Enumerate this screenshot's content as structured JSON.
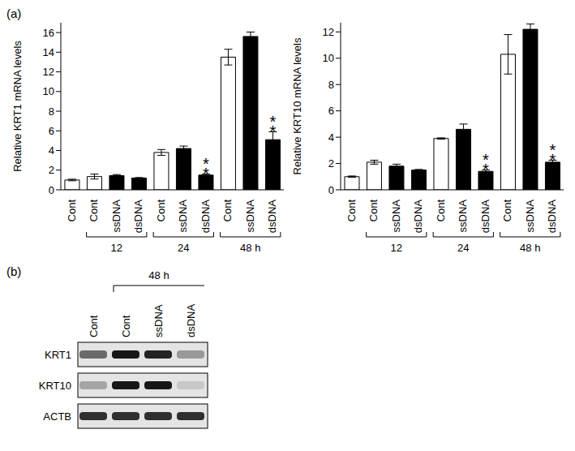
{
  "chart_data": [
    {
      "type": "bar",
      "y_label": "Relative KRT1 mRNA levels",
      "categories": [
        "Cont",
        "Cont",
        "ssDNA",
        "dsDNA",
        "Cont",
        "ssDNA",
        "dsDNA",
        "Cont",
        "ssDNA",
        "dsDNA"
      ],
      "values": [
        1.0,
        1.35,
        1.45,
        1.2,
        3.8,
        4.2,
        1.5,
        13.5,
        15.6,
        5.1
      ],
      "errors": [
        0.08,
        0.25,
        0.1,
        0.05,
        0.3,
        0.25,
        0.1,
        0.8,
        0.45,
        0.8
      ],
      "colors": [
        "#ffffff",
        "#ffffff",
        "#000000",
        "#000000",
        "#ffffff",
        "#000000",
        "#000000",
        "#ffffff",
        "#000000",
        "#000000"
      ],
      "significance": [
        null,
        null,
        null,
        null,
        null,
        null,
        "**",
        null,
        null,
        "**"
      ],
      "groups": [
        {
          "label": "12",
          "categories": [
            1,
            3
          ]
        },
        {
          "label": "24",
          "categories": [
            4,
            6
          ]
        },
        {
          "label": "48 h",
          "categories": [
            7,
            9
          ]
        }
      ],
      "ylim": [
        0,
        17
      ],
      "yticks": [
        0,
        2,
        4,
        6,
        8,
        10,
        12,
        14,
        16
      ]
    },
    {
      "type": "bar",
      "y_label": "Relative KRT10 mRNA levels",
      "categories": [
        "Cont",
        "Cont",
        "ssDNA",
        "dsDNA",
        "Cont",
        "ssDNA",
        "dsDNA",
        "Cont",
        "ssDNA",
        "dsDNA"
      ],
      "values": [
        1.0,
        2.1,
        1.8,
        1.5,
        3.9,
        4.6,
        1.4,
        10.3,
        12.2,
        2.1
      ],
      "errors": [
        0.05,
        0.15,
        0.15,
        0.05,
        0.05,
        0.4,
        0.1,
        1.5,
        0.4,
        0.15
      ],
      "colors": [
        "#ffffff",
        "#ffffff",
        "#000000",
        "#000000",
        "#ffffff",
        "#000000",
        "#000000",
        "#ffffff",
        "#000000",
        "#000000"
      ],
      "significance": [
        null,
        null,
        null,
        null,
        null,
        null,
        "**",
        null,
        null,
        "**"
      ],
      "groups": [
        {
          "label": "12",
          "categories": [
            1,
            3
          ]
        },
        {
          "label": "24",
          "categories": [
            4,
            6
          ]
        },
        {
          "label": "48 h",
          "categories": [
            7,
            9
          ]
        }
      ],
      "ylim": [
        0,
        12.7
      ],
      "yticks": [
        0,
        2,
        4,
        6,
        8,
        10,
        12
      ]
    }
  ],
  "panel_labels": [
    "(a)",
    "(b)"
  ],
  "blot": {
    "time_label": "48 h",
    "time_lanes": [
      1,
      3
    ],
    "lanes": [
      "Cont",
      "Cont",
      "ssDNA",
      "dsDNA"
    ],
    "rows": [
      {
        "label": "KRT1",
        "intensity": [
          0.55,
          0.9,
          0.85,
          0.35
        ]
      },
      {
        "label": "KRT10",
        "intensity": [
          0.3,
          0.9,
          0.9,
          0.15
        ]
      },
      {
        "label": "ACTB",
        "intensity": [
          0.8,
          0.8,
          0.8,
          0.8
        ]
      }
    ]
  }
}
